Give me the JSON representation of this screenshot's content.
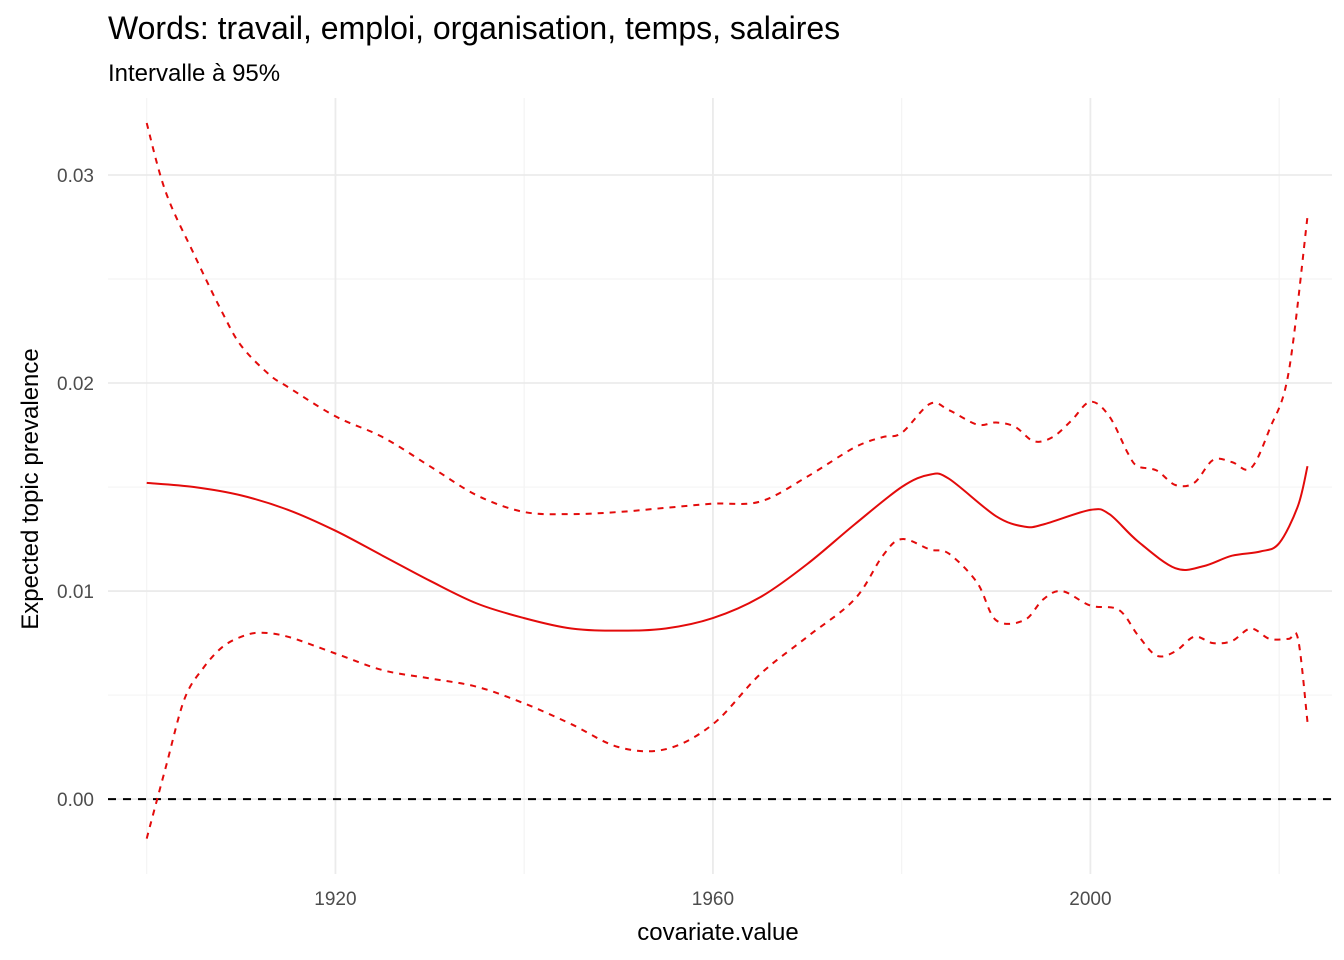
{
  "chart_data": {
    "type": "line",
    "title": "Words: travail, emploi, organisation, temps, salaires",
    "subtitle": "Intervalle à 95%",
    "xlabel": "covariate.value",
    "ylabel": "Expected topic prevalence",
    "xlim": [
      1895.9,
      2025.6
    ],
    "ylim": [
      -0.0036,
      0.0337
    ],
    "x_ticks": [
      1920,
      1960,
      2000
    ],
    "x_tick_labels": [
      "1920",
      "1960",
      "2000"
    ],
    "y_ticks": [
      0.0,
      0.01,
      0.02,
      0.03
    ],
    "y_tick_labels": [
      "0.00",
      "0.01",
      "0.02",
      "0.03"
    ],
    "grid": true,
    "reference_line": {
      "y": 0,
      "style": "dashed",
      "color": "#000000"
    },
    "series": [
      {
        "role": "estimate",
        "style": "solid",
        "color": "#e30b0b",
        "x": [
          1900,
          1905,
          1910,
          1915,
          1920,
          1925,
          1930,
          1935,
          1940,
          1945,
          1950,
          1955,
          1960,
          1965,
          1970,
          1975,
          1980,
          1983,
          1985,
          1990,
          1993,
          1995,
          2000,
          2002,
          2005,
          2009,
          2012,
          2015,
          2018,
          2020,
          2022,
          2023
        ],
        "y": [
          0.0152,
          0.015,
          0.0146,
          0.0139,
          0.0129,
          0.0117,
          0.0105,
          0.0094,
          0.0087,
          0.0082,
          0.0081,
          0.0082,
          0.0087,
          0.0097,
          0.0113,
          0.0132,
          0.015,
          0.0156,
          0.0154,
          0.0136,
          0.0131,
          0.0132,
          0.0139,
          0.0137,
          0.0124,
          0.0111,
          0.0112,
          0.0117,
          0.0119,
          0.0123,
          0.0141,
          0.016
        ]
      },
      {
        "role": "upper",
        "style": "dashed",
        "color": "#e30b0b",
        "x": [
          1900,
          1902,
          1905,
          1908,
          1910,
          1913,
          1915,
          1920,
          1925,
          1930,
          1935,
          1940,
          1945,
          1950,
          1955,
          1960,
          1965,
          1970,
          1975,
          1978,
          1980,
          1983,
          1985,
          1988,
          1990,
          1992,
          1994,
          1996,
          1998,
          2000,
          2002,
          2004,
          2005,
          2007,
          2009,
          2011,
          2013,
          2015,
          2017,
          2019,
          2021,
          2023
        ],
        "y": [
          0.0325,
          0.0292,
          0.0262,
          0.0234,
          0.0218,
          0.0204,
          0.0198,
          0.0184,
          0.0174,
          0.016,
          0.0146,
          0.0138,
          0.0137,
          0.0138,
          0.014,
          0.0142,
          0.0143,
          0.0155,
          0.0169,
          0.0174,
          0.0176,
          0.019,
          0.0187,
          0.018,
          0.0181,
          0.0179,
          0.0172,
          0.0174,
          0.0182,
          0.0191,
          0.0184,
          0.0166,
          0.016,
          0.0158,
          0.0151,
          0.0152,
          0.0163,
          0.0162,
          0.0159,
          0.0178,
          0.0205,
          0.028
        ]
      },
      {
        "role": "lower",
        "style": "dashed",
        "color": "#e30b0b",
        "x": [
          1900,
          1902,
          1904,
          1906,
          1908,
          1910,
          1912,
          1915,
          1920,
          1925,
          1930,
          1935,
          1940,
          1945,
          1950,
          1955,
          1960,
          1965,
          1970,
          1975,
          1978,
          1980,
          1983,
          1985,
          1988,
          1990,
          1993,
          1995,
          1997,
          2000,
          2003,
          2005,
          2007,
          2009,
          2011,
          2013,
          2015,
          2017,
          2019,
          2021,
          2022,
          2023
        ],
        "y": [
          -0.0019,
          0.0015,
          0.0048,
          0.0063,
          0.0073,
          0.0078,
          0.008,
          0.0078,
          0.007,
          0.0062,
          0.0058,
          0.0054,
          0.0046,
          0.0036,
          0.0025,
          0.0024,
          0.0036,
          0.006,
          0.0078,
          0.0096,
          0.0117,
          0.0125,
          0.012,
          0.0118,
          0.0104,
          0.0086,
          0.0086,
          0.0096,
          0.01,
          0.0093,
          0.0091,
          0.0079,
          0.0069,
          0.0071,
          0.0078,
          0.0075,
          0.0076,
          0.0082,
          0.0077,
          0.0077,
          0.0077,
          0.0037
        ]
      }
    ],
    "colors": {
      "series": "#e30b0b",
      "reference": "#000000",
      "grid_major": "#ebebeb",
      "grid_minor": "#f4f4f4",
      "tick_text": "#4d4d4d"
    }
  }
}
